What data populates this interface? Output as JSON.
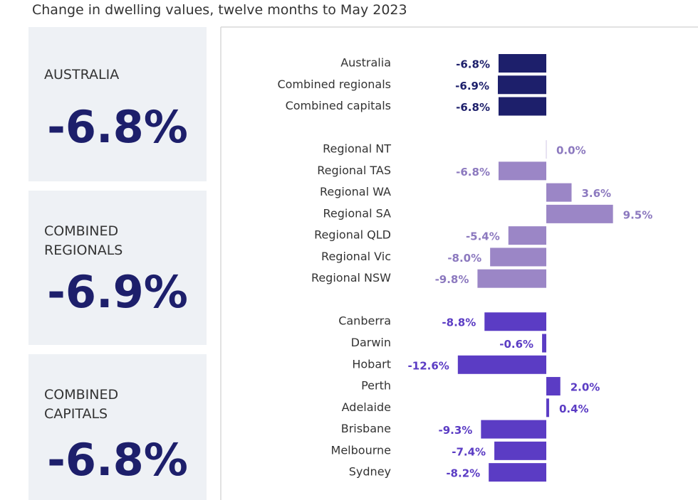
{
  "title": "Change in dwelling values, twelve months to May 2023",
  "panels": [
    {
      "label": "AUSTRALIA",
      "value": "-6.8%"
    },
    {
      "label": "COMBINED REGIONALS",
      "value": "-6.9%"
    },
    {
      "label": "COMBINED CAPITALS",
      "value": "-6.8%"
    }
  ],
  "chart_data": {
    "type": "bar",
    "orientation": "horizontal",
    "categories": [
      "Australia",
      "Combined regionals",
      "Combined capitals",
      null,
      "Regional NT",
      "Regional TAS",
      "Regional WA",
      "Regional SA",
      "Regional QLD",
      "Regional Vic",
      "Regional NSW",
      null,
      "Canberra",
      "Darwin",
      "Hobart",
      "Perth",
      "Adelaide",
      "Brisbane",
      "Melbourne",
      "Sydney"
    ],
    "xlim": [
      -14,
      14
    ],
    "series": [
      {
        "color": "#1d1f6b",
        "values": [
          -6.8,
          -6.9,
          -6.8,
          null,
          null,
          null,
          null,
          null,
          null,
          null,
          null,
          null,
          null,
          null,
          null,
          null,
          null,
          null,
          null,
          null
        ],
        "value_labels": [
          "-6.8%",
          "-6.9%",
          "-6.8%",
          null,
          null,
          null,
          null,
          null,
          null,
          null,
          null,
          null,
          null,
          null,
          null,
          null,
          null,
          null,
          null,
          null
        ]
      },
      {
        "color": "#9b86c6",
        "values": [
          null,
          null,
          null,
          null,
          0.0,
          -6.8,
          3.6,
          9.5,
          -5.4,
          -8.0,
          -9.8,
          null,
          null,
          null,
          null,
          null,
          null,
          null,
          null,
          null
        ],
        "value_labels": [
          null,
          null,
          null,
          null,
          "0.0%",
          "-6.8%",
          "3.6%",
          "9.5%",
          "-5.4%",
          "-8.0%",
          "-9.8%",
          null,
          null,
          null,
          null,
          null,
          null,
          null,
          null,
          null
        ]
      },
      {
        "color": "#5b3cc4",
        "values": [
          null,
          null,
          null,
          null,
          null,
          null,
          null,
          null,
          null,
          null,
          null,
          null,
          -8.8,
          -0.6,
          -12.6,
          2.0,
          0.4,
          -9.3,
          -7.4,
          -8.2
        ],
        "value_labels": [
          null,
          null,
          null,
          null,
          null,
          null,
          null,
          null,
          null,
          null,
          null,
          null,
          "-8.8%",
          "-0.6%",
          "-12.6%",
          "2.0%",
          "0.4%",
          "-9.3%",
          "-7.4%",
          "-8.2%"
        ]
      }
    ]
  }
}
